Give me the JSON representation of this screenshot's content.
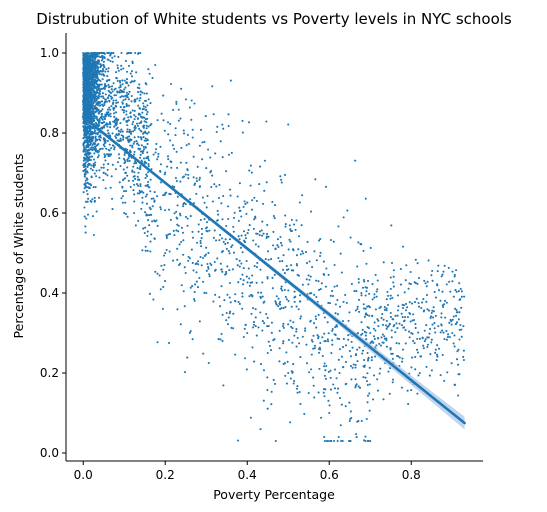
{
  "chart_data": {
    "type": "scatter",
    "title": "Distrubution of White students vs Poverty levels in NYC schools",
    "xlabel": "Poverty Percentage",
    "ylabel": "Percentage of White students",
    "xlim": [
      -0.042,
      0.975
    ],
    "ylim": [
      -0.02,
      1.05
    ],
    "xticks": [
      0.0,
      0.2,
      0.4,
      0.6,
      0.8
    ],
    "xtick_labels": [
      "0.0",
      "0.2",
      "0.4",
      "0.6",
      "0.8"
    ],
    "yticks": [
      0.0,
      0.2,
      0.4,
      0.6,
      0.8,
      1.0
    ],
    "ytick_labels": [
      "0.0",
      "0.2",
      "0.4",
      "0.6",
      "0.8",
      "1.0"
    ],
    "grid": false,
    "color": "#1f77b4",
    "band_color": "#aec7e8",
    "point_count": 3600,
    "trend_line": {
      "x": [
        0.0,
        0.93
      ],
      "y": [
        0.84,
        0.075
      ]
    },
    "sample_points": [
      [
        0.0,
        1.0
      ],
      [
        0.01,
        0.92
      ],
      [
        0.02,
        0.85
      ],
      [
        0.03,
        0.78
      ],
      [
        0.05,
        0.7
      ],
      [
        0.08,
        0.82
      ],
      [
        0.1,
        0.6
      ],
      [
        0.15,
        0.55
      ],
      [
        0.2,
        0.5
      ],
      [
        0.25,
        0.45
      ],
      [
        0.3,
        0.4
      ],
      [
        0.35,
        0.35
      ],
      [
        0.4,
        0.3
      ],
      [
        0.45,
        0.25
      ],
      [
        0.5,
        0.2
      ],
      [
        0.55,
        0.15
      ],
      [
        0.6,
        0.1
      ],
      [
        0.65,
        0.08
      ],
      [
        0.7,
        0.3
      ],
      [
        0.75,
        0.35
      ],
      [
        0.8,
        0.3
      ],
      [
        0.85,
        0.35
      ],
      [
        0.9,
        0.3
      ],
      [
        0.92,
        0.32
      ]
    ]
  }
}
